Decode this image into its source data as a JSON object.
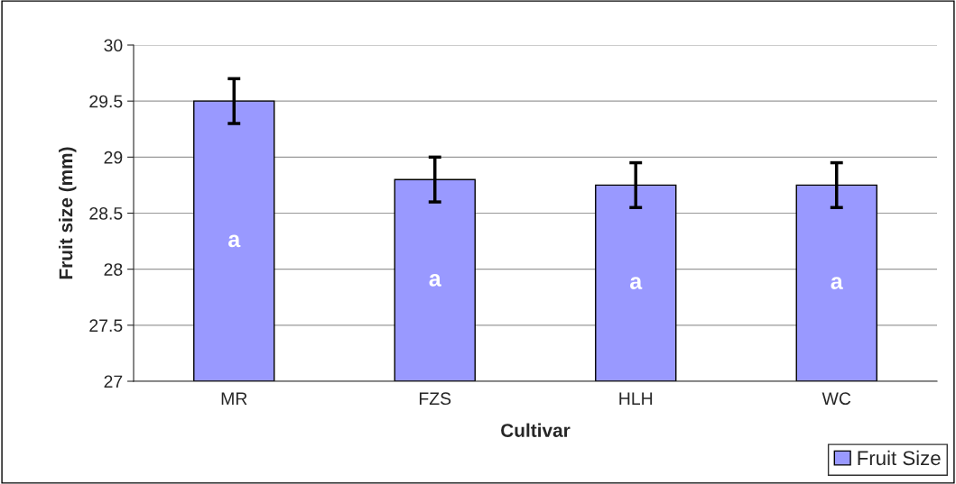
{
  "chart_data": {
    "type": "bar",
    "xlabel": "Cultivar",
    "ylabel": "Fruit size (mm)",
    "categories": [
      "MR",
      "FZS",
      "HLH",
      "WC"
    ],
    "series": [
      {
        "name": "Fruit Size",
        "color": "#9999ff",
        "values": [
          29.5,
          28.8,
          28.75,
          28.75
        ],
        "errors": [
          0.2,
          0.2,
          0.2,
          0.2
        ]
      }
    ],
    "ylim": [
      27,
      30
    ],
    "yticks": [
      27,
      27.5,
      28,
      28.5,
      29,
      29.5,
      30
    ],
    "grid": "y",
    "legend": "bottom right",
    "annotations": [
      "a",
      "a",
      "a",
      "a"
    ]
  }
}
